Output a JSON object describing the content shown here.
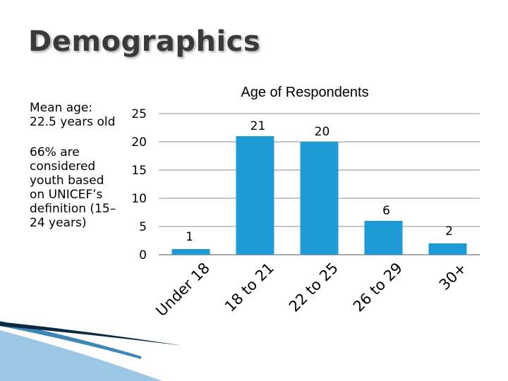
{
  "slide": {
    "title": "Demographics",
    "mean_age_lines": [
      "Mean age:",
      "22.5 years old"
    ],
    "youth_lines": [
      "66% are",
      "considered",
      "youth based",
      "on UNICEF’s",
      "definition (15–",
      "24 years)"
    ]
  },
  "colors": {
    "bar": "#1e9bd7",
    "grid": "#8c8c8c",
    "title_text": "#3a3a3a",
    "deco_dark": "#0a2a40",
    "deco_mid": "#3d87b8",
    "deco_light": "#9cc7e5"
  },
  "chart_data": {
    "type": "bar",
    "title": "Age of Respondents",
    "categories": [
      "Under 18",
      "18 to 21",
      "22 to 25",
      "26 to 29",
      "30+"
    ],
    "values": [
      1,
      21,
      20,
      6,
      2
    ],
    "value_labels": [
      "1",
      "21",
      "20",
      "6",
      "2"
    ],
    "ylim": [
      0,
      25
    ],
    "yticks": [
      0,
      5,
      10,
      15,
      20,
      25
    ],
    "ytick_labels": [
      "0",
      "5",
      "10",
      "15",
      "20",
      "25"
    ],
    "grid": true,
    "xlabel": "",
    "ylabel": ""
  }
}
